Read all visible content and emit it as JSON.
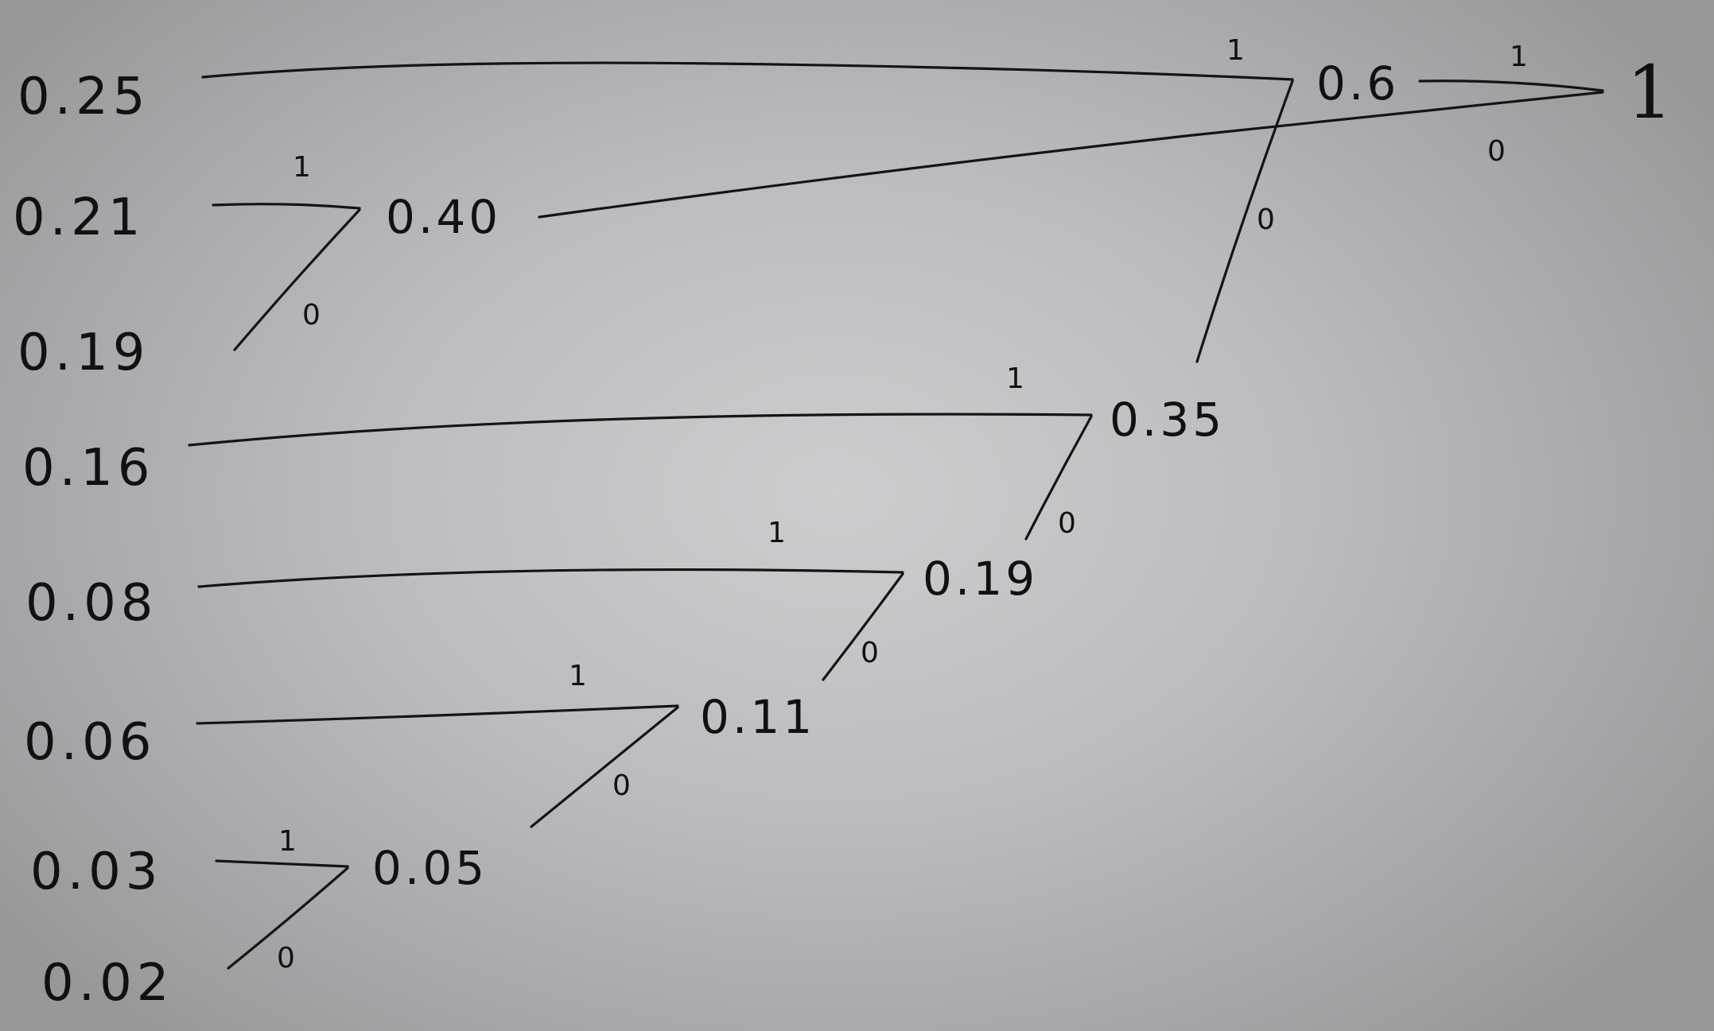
{
  "leaves": [
    "0.25",
    "0.21",
    "0.19",
    "0.16",
    "0.08",
    "0.06",
    "0.03",
    "0.02"
  ],
  "nodes": {
    "n005": "0.05",
    "n011": "0.11",
    "n019": "0.19",
    "n035": "0.35",
    "n040": "0.40",
    "n06": "0.6",
    "root": "1"
  },
  "bits": {
    "one": "1",
    "zero": "0"
  },
  "colors": {
    "ink": "#141414",
    "board": "#bcbbbf"
  }
}
